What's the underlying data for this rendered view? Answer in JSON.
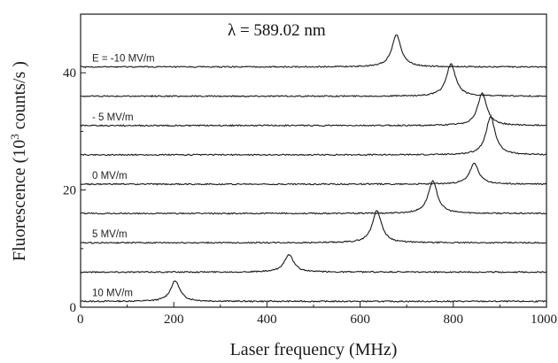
{
  "chart_data": {
    "type": "line",
    "title": "",
    "annotation": "λ = 589.02 nm",
    "xlabel": "Laser frequency (MHz)",
    "ylabel": {
      "prefix": "Fluorescence (10",
      "sup": "3",
      "suffix": " counts/s )"
    },
    "xlim": [
      0,
      1000
    ],
    "ylim": [
      0,
      50
    ],
    "xticks": [
      0,
      200,
      400,
      600,
      800,
      1000
    ],
    "yticks": [
      0,
      20,
      40
    ],
    "grid": false,
    "peak_width_mhz": 12,
    "series": [
      {
        "field_label": "10 MV/m",
        "baseline": 1.0,
        "peak_x": 203,
        "peak_height": 3.5
      },
      {
        "field_label": "",
        "baseline": 6.0,
        "peak_x": 447,
        "peak_height": 3.0
      },
      {
        "field_label": "5 MV/m",
        "baseline": 11.0,
        "peak_x": 636,
        "peak_height": 5.5
      },
      {
        "field_label": "",
        "baseline": 16.0,
        "peak_x": 756,
        "peak_height": 5.5
      },
      {
        "field_label": "0  MV/m",
        "baseline": 21.0,
        "peak_x": 845,
        "peak_height": 3.5
      },
      {
        "field_label": "",
        "baseline": 26.0,
        "peak_x": 880,
        "peak_height": 6.5
      },
      {
        "field_label": "- 5 MV/m",
        "baseline": 31.0,
        "peak_x": 862,
        "peak_height": 5.5
      },
      {
        "field_label": "",
        "baseline": 36.0,
        "peak_x": 795,
        "peak_height": 5.5
      },
      {
        "field_label": "E = -10 MV/m",
        "baseline": 41.0,
        "peak_x": 678,
        "peak_height": 5.5
      }
    ]
  }
}
